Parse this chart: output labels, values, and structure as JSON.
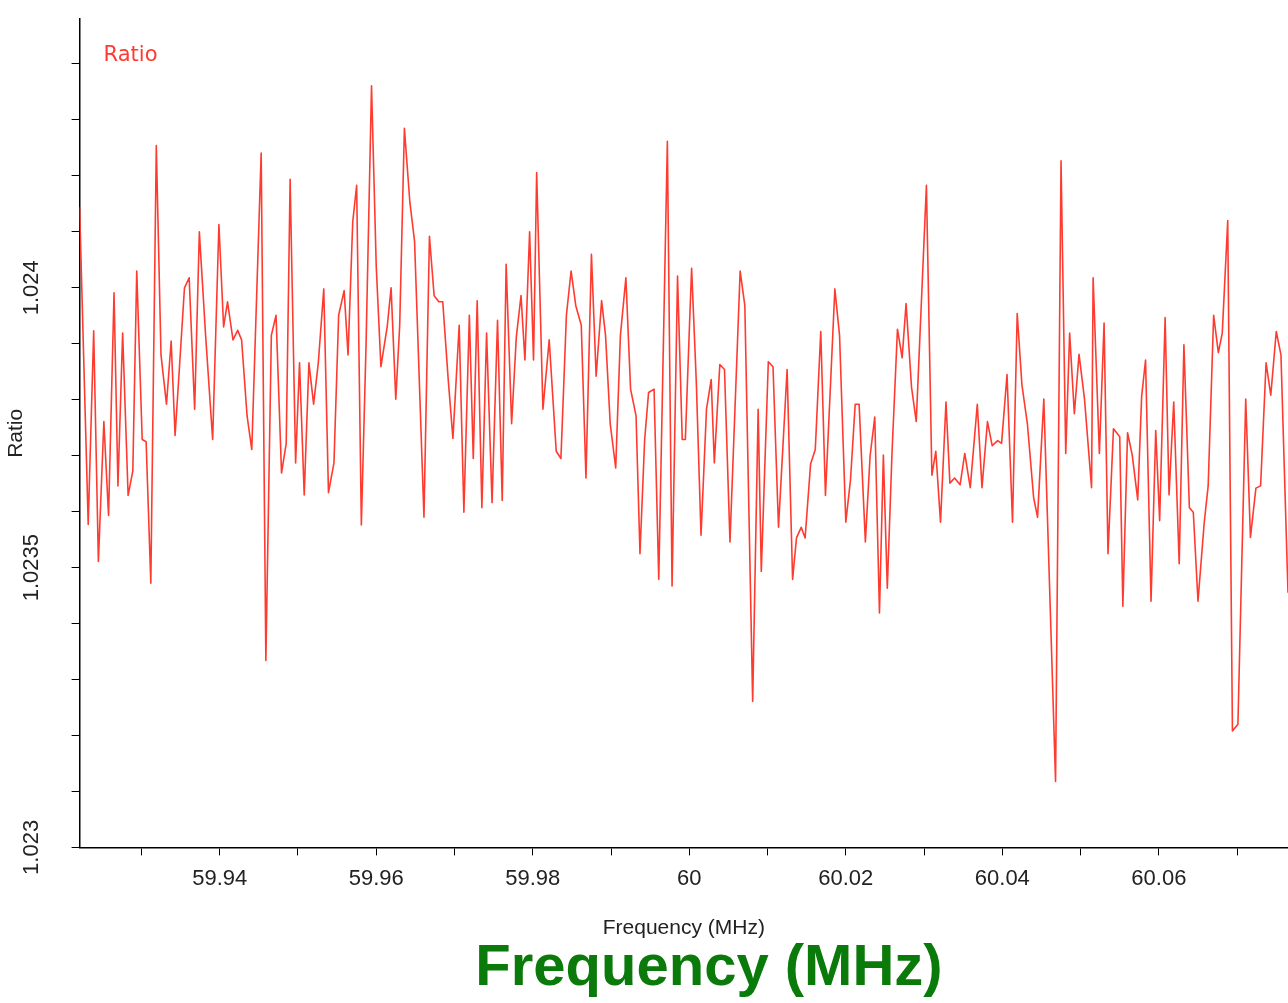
{
  "chart_data": {
    "type": "line",
    "xlabel": "Frequency (MHz)",
    "ylabel": "Ratio",
    "annotations": [
      "Frequency (MHz)"
    ],
    "xlim": [
      59.9221,
      60.0765
    ],
    "ylim": [
      1.023,
      1.02448
    ],
    "xticks": [
      {
        "value": 59.93,
        "label": null
      },
      59.94,
      {
        "value": 59.95,
        "label": null
      },
      59.96,
      {
        "value": 59.97,
        "label": null
      },
      59.98,
      {
        "value": 59.99,
        "label": null
      },
      {
        "value": 60,
        "label": "60"
      },
      {
        "value": 60.01,
        "label": null
      },
      60.02,
      {
        "value": 60.03,
        "label": null
      },
      60.04,
      {
        "value": 60.05,
        "label": null
      },
      60.06,
      {
        "value": 60.07,
        "label": null
      }
    ],
    "yticks": [
      1.023,
      {
        "value": 1.0231,
        "label": null
      },
      {
        "value": 1.0232,
        "label": null
      },
      {
        "value": 1.0233,
        "label": null
      },
      {
        "value": 1.0234,
        "label": null
      },
      1.0235,
      {
        "value": 1.0236,
        "label": null
      },
      {
        "value": 1.0237,
        "label": null
      },
      {
        "value": 1.0238,
        "label": null
      },
      {
        "value": 1.0239,
        "label": null
      },
      1.024,
      {
        "value": 1.0241,
        "label": null
      },
      {
        "value": 1.0242,
        "label": null
      },
      {
        "value": 1.0243,
        "label": null
      },
      {
        "value": 1.0244,
        "label": null
      }
    ],
    "legend": "top left",
    "marker": "none",
    "x": [
      59.9221,
      59.9232,
      59.9239,
      59.9245,
      59.9252,
      59.9258,
      59.9265,
      59.927,
      59.9276,
      59.9283,
      59.9289,
      59.9294,
      59.9301,
      59.9306,
      59.9312,
      59.9319,
      59.9325,
      59.9332,
      59.9338,
      59.9343,
      59.9348,
      59.9355,
      59.9361,
      59.9368,
      59.9374,
      59.9382,
      59.9391,
      59.9399,
      59.9405,
      59.941,
      59.9417,
      59.9423,
      59.9428,
      59.9435,
      59.9441,
      59.9453,
      59.9459,
      59.9466,
      59.9472,
      59.9479,
      59.9485,
      59.949,
      59.9497,
      59.9502,
      59.9508,
      59.9514,
      59.952,
      59.9526,
      59.9533,
      59.9539,
      59.9546,
      59.9552,
      59.9559,
      59.9564,
      59.957,
      59.9575,
      59.9581,
      59.9587,
      59.9594,
      59.96,
      59.9606,
      59.9614,
      59.9619,
      59.9625,
      59.963,
      59.9636,
      59.9643,
      59.9649,
      59.9661,
      59.9668,
      59.9674,
      59.968,
      59.9685,
      59.9692,
      59.9698,
      59.9706,
      59.9712,
      59.9719,
      59.9724,
      59.9729,
      59.9735,
      59.9741,
      59.9748,
      59.9755,
      59.9761,
      59.9766,
      59.9773,
      59.9779,
      59.9785,
      59.979,
      59.9796,
      59.9801,
      59.9805,
      59.9813,
      59.9821,
      59.983,
      59.9836,
      59.9843,
      59.9849,
      59.9855,
      59.9862,
      59.9868,
      59.9875,
      59.9881,
      59.9888,
      59.9893,
      59.9899,
      59.9906,
      59.9912,
      59.9919,
      59.9925,
      59.9932,
      59.9937,
      59.9943,
      59.9948,
      59.9955,
      59.9961,
      59.9972,
      59.9978,
      59.9985,
      59.9991,
      59.9995,
      60,
      60.0003,
      60.0009,
      60.0015,
      60.0022,
      60.0028,
      60.0032,
      60.0039,
      60.0045,
      60.0052,
      60.0065,
      60.0071,
      60.0081,
      60.0088,
      60.0092,
      60.0101,
      60.0107,
      60.0114,
      60.0125,
      60.0132,
      60.0137,
      60.0143,
      60.0148,
      60.0155,
      60.0161,
      60.0168,
      60.0174,
      60.0186,
      60.0192,
      60.02,
      60.0206,
      60.0212,
      60.0217,
      60.0225,
      60.0231,
      60.0237,
      60.0243,
      60.0248,
      60.0253,
      60.0259,
      60.0266,
      60.0272,
      60.0277,
      60.0284,
      60.029,
      60.0303,
      60.031,
      60.0315,
      60.0321,
      60.0328,
      60.0333,
      60.0339,
      60.0346,
      60.0352,
      60.0359,
      60.0368,
      60.0374,
      60.0381,
      60.0387,
      60.0394,
      60.0399,
      60.0406,
      60.0413,
      60.0419,
      60.0425,
      60.0432,
      60.044,
      60.0445,
      60.0453,
      60.0468,
      60.0475,
      60.0481,
      60.0486,
      60.0492,
      60.0498,
      60.0505,
      60.0514,
      60.0516,
      60.0524,
      60.053,
      60.0535,
      60.0542,
      60.055,
      60.0554,
      60.056,
      60.0566,
      60.0573,
      60.0578,
      60.0583,
      60.059,
      60.0596,
      60.0601,
      60.0608,
      60.0613,
      60.0619,
      60.0626,
      60.0632,
      60.0639,
      60.0644,
      60.065,
      60.0658,
      60.0663,
      60.067,
      60.0676,
      60.0681,
      60.0688,
      60.0694,
      60.0701,
      60.0711,
      60.0717,
      60.0724,
      60.073,
      60.0737,
      60.0743,
      60.075,
      60.0756,
      60.0765
    ],
    "series": [
      {
        "name": "Ratio",
        "color": "#ff3b30",
        "values": [
          1.024144,
          1.023577,
          1.023923,
          1.023511,
          1.023761,
          1.023593,
          1.023991,
          1.023646,
          1.023919,
          1.023629,
          1.023673,
          1.02403,
          1.023729,
          1.023725,
          1.023472,
          1.024254,
          1.02388,
          1.023792,
          1.023905,
          1.023736,
          1.023845,
          1.024,
          1.024018,
          1.023783,
          1.0241,
          1.023915,
          1.023729,
          1.024113,
          1.02393,
          1.023975,
          1.023907,
          1.023924,
          1.023907,
          1.023771,
          1.023711,
          1.024241,
          1.023334,
          1.023915,
          1.023951,
          1.023669,
          1.023722,
          1.024194,
          1.023687,
          1.023866,
          1.02363,
          1.023866,
          1.023792,
          1.023866,
          1.023998,
          1.023634,
          1.023687,
          1.023951,
          1.023995,
          1.02388,
          1.024118,
          1.024183,
          1.023576,
          1.023898,
          1.024361,
          1.024039,
          1.023859,
          1.02393,
          1.024,
          1.023801,
          1.023933,
          1.024285,
          1.024153,
          1.024083,
          1.02359,
          1.024092,
          1.023986,
          1.023975,
          1.023975,
          1.023836,
          1.023731,
          1.023933,
          1.023599,
          1.023951,
          1.023695,
          1.023977,
          1.023607,
          1.023919,
          1.023616,
          1.023942,
          1.02362,
          1.024042,
          1.023757,
          1.023912,
          1.023986,
          1.023871,
          1.0241,
          1.023871,
          1.024206,
          1.023783,
          1.023907,
          1.023708,
          1.023695,
          1.023951,
          1.02403,
          1.023968,
          1.023933,
          1.02366,
          1.02406,
          1.023842,
          1.023977,
          1.023915,
          1.023757,
          1.023678,
          1.023915,
          1.024018,
          1.023819,
          1.023771,
          1.023525,
          1.023729,
          1.023813,
          1.023819,
          1.023479,
          1.024262,
          1.023467,
          1.024021,
          1.023729,
          1.023729,
          1.023922,
          1.024035,
          1.023831,
          1.023558,
          1.023783,
          1.023836,
          1.023687,
          1.023863,
          1.023854,
          1.023546,
          1.02403,
          1.023968,
          1.023261,
          1.023783,
          1.023493,
          1.023868,
          1.023859,
          1.023572,
          1.023854,
          1.023479,
          1.023553,
          1.023572,
          1.023553,
          1.023685,
          1.023711,
          1.023922,
          1.023629,
          1.023998,
          1.023915,
          1.023581,
          1.023657,
          1.023792,
          1.023792,
          1.023546,
          1.023699,
          1.023769,
          1.023419,
          1.023701,
          1.023463,
          1.023704,
          1.023926,
          1.023875,
          1.023972,
          1.023822,
          1.023761,
          1.024183,
          1.023665,
          1.023708,
          1.023581,
          1.023796,
          1.023651,
          1.02366,
          1.023648,
          1.023704,
          1.023643,
          1.023792,
          1.023643,
          1.023761,
          1.023718,
          1.023727,
          1.023722,
          1.023845,
          1.023581,
          1.023954,
          1.023827,
          1.023757,
          1.023625,
          1.02359,
          1.023801,
          1.023118,
          1.024227,
          1.023704,
          1.023919,
          1.023775,
          1.023881,
          1.023801,
          1.023643,
          1.024018,
          1.023704,
          1.023937,
          1.023525,
          1.023748,
          1.023734,
          1.023431,
          1.023741,
          1.023701,
          1.023621,
          1.023806,
          1.023871,
          1.02344,
          1.023745,
          1.023584,
          1.023947,
          1.02363,
          1.023796,
          1.023507,
          1.023898,
          1.023607,
          1.023599,
          1.02344,
          1.023581,
          1.023646,
          1.023951,
          1.023884,
          1.023919,
          1.02412,
          1.023208,
          1.02322,
          1.023801,
          1.023554,
          1.023642,
          1.023646,
          1.023866,
          1.023808,
          1.023922,
          1.02388,
          1.023455
        ]
      }
    ]
  }
}
